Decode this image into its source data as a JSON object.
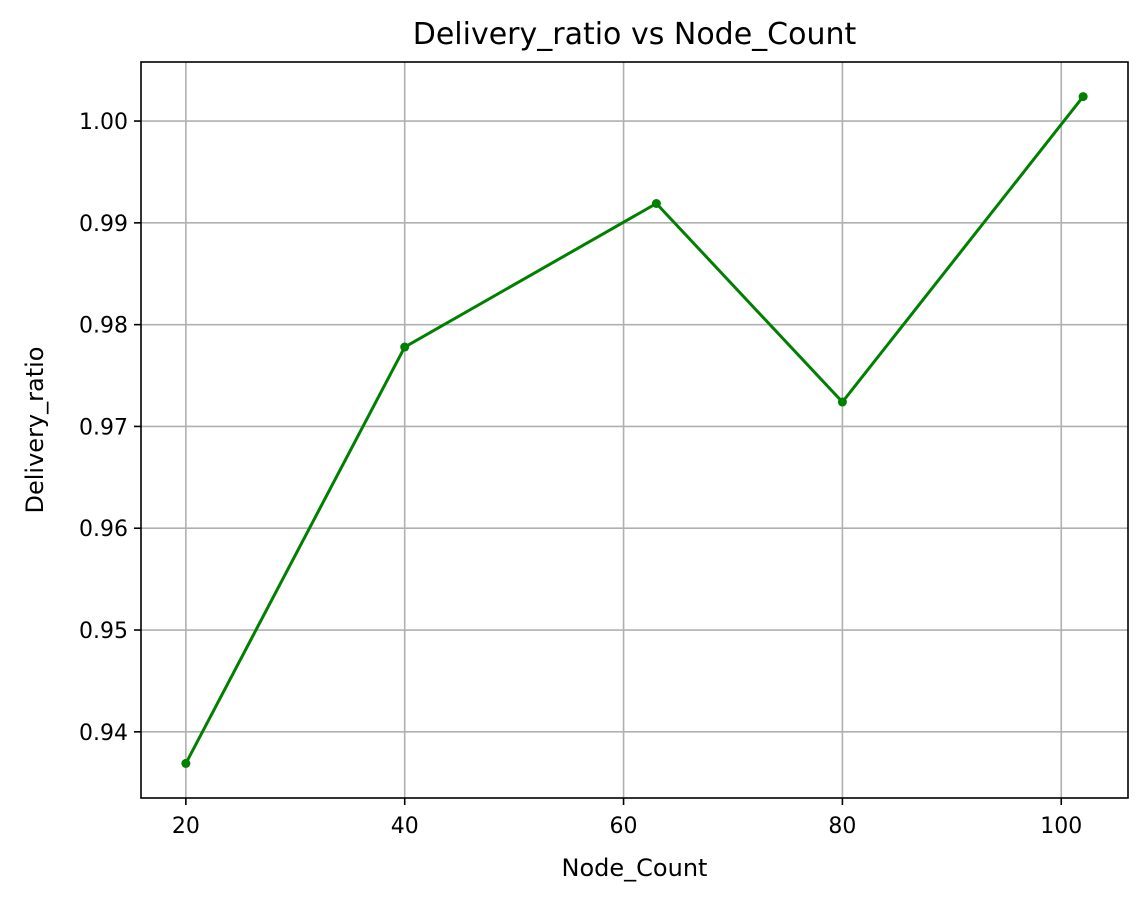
{
  "chart_data": {
    "type": "line",
    "title": "Delivery_ratio vs Node_Count",
    "xlabel": "Node_Count",
    "ylabel": "Delivery_ratio",
    "x": [
      20,
      40,
      63,
      80,
      102
    ],
    "series": [
      {
        "values": [
          0.9369,
          0.9778,
          0.9919,
          0.9724,
          1.0024
        ],
        "color": "#008000",
        "marker": "circle"
      }
    ],
    "xlim": [
      15.9,
      106.1
    ],
    "ylim": [
      0.9335,
      1.0058
    ],
    "xticks": [
      20,
      40,
      60,
      80,
      100
    ],
    "xtick_labels": [
      "20",
      "40",
      "60",
      "80",
      "100"
    ],
    "yticks": [
      0.94,
      0.95,
      0.96,
      0.97,
      0.98,
      0.99,
      1.0
    ],
    "ytick_labels": [
      "0.94",
      "0.95",
      "0.96",
      "0.97",
      "0.98",
      "0.99",
      "1.00"
    ],
    "grid": true,
    "legend": "none"
  }
}
